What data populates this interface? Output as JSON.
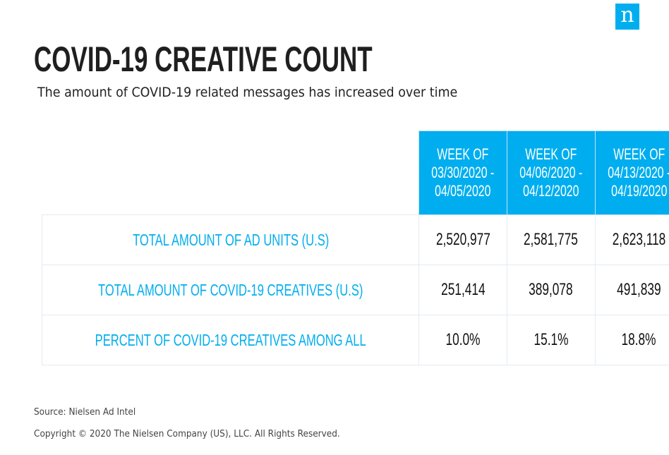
{
  "logo": {
    "letter": "n",
    "color": "#00aeef"
  },
  "title": "COVID-19 CREATIVE COUNT",
  "subtitle": "The amount of COVID-19 related messages has increased over time",
  "footer": {
    "source": "Source: Nielsen Ad Intel",
    "copyright": "Copyright © 2020 The Nielsen Company (US), LLC. All Rights Reserved."
  },
  "chart_data": {
    "type": "table",
    "title": "COVID-19 CREATIVE COUNT",
    "subtitle": "The amount of COVID-19 related messages has increased over time",
    "columns": [
      {
        "line1": "WEEK OF",
        "line2": "03/30/2020 -",
        "line3": "04/05/2020",
        "label": "WEEK OF 03/30/2020 - 04/05/2020"
      },
      {
        "line1": "WEEK OF",
        "line2": "04/06/2020 -",
        "line3": "04/12/2020",
        "label": "WEEK OF 04/06/2020 - 04/12/2020"
      },
      {
        "line1": "WEEK OF",
        "line2": "04/13/2020 -",
        "line3": "04/19/2020",
        "label": "WEEK OF 04/13/2020 - 04/19/2020"
      }
    ],
    "rows": [
      {
        "label": "TOTAL AMOUNT OF AD UNITS (U.S)",
        "values": [
          "2,520,977",
          "2,581,775",
          "2,623,118"
        ]
      },
      {
        "label": "TOTAL AMOUNT OF COVID-19 CREATIVES (U.S)",
        "values": [
          "251,414",
          "389,078",
          "491,839"
        ]
      },
      {
        "label": "PERCENT OF COVID-19 CREATIVES AMONG ALL",
        "values": [
          "10.0%",
          "15.1%",
          "18.8%"
        ]
      }
    ],
    "header_color": "#00aeef",
    "label_color": "#00aeef"
  }
}
